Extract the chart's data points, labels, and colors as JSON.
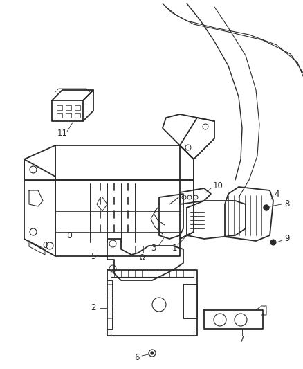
{
  "background_color": "#ffffff",
  "line_color": "#2a2a2a",
  "fig_width": 4.38,
  "fig_height": 5.33,
  "dpi": 100,
  "lw_main": 1.0,
  "lw_thin": 0.6,
  "lw_thick": 1.3,
  "label_fontsize": 8.5
}
